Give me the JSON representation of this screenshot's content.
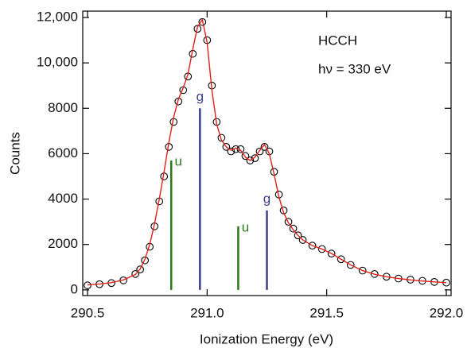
{
  "chart_data": {
    "type": "scatter",
    "x_label": "Ionization Energy (eV)",
    "y_label": "Counts",
    "annotations": [
      "HCCH",
      "hν = 330 eV"
    ],
    "xlim": [
      290.48,
      292.02
    ],
    "ylim": [
      -250,
      12280
    ],
    "xticks": [
      {
        "value": 290.5,
        "label": "290.5"
      },
      {
        "value": 291,
        "label": "291.0"
      },
      {
        "value": 291.5,
        "label": "291.5"
      },
      {
        "value": 292,
        "label": "292.0"
      }
    ],
    "yticks": [
      0,
      2000,
      4000,
      6000,
      8000,
      {
        "value": 10000,
        "label": "10,000"
      },
      {
        "value": 12000,
        "label": "12,000"
      }
    ],
    "x": [
      290.5,
      290.55,
      290.6,
      290.65,
      290.7,
      290.72,
      290.74,
      290.76,
      290.78,
      290.8,
      290.82,
      290.84,
      290.86,
      290.88,
      290.9,
      290.92,
      290.94,
      290.96,
      290.98,
      291.0,
      291.02,
      291.04,
      291.06,
      291.08,
      291.1,
      291.12,
      291.14,
      291.16,
      291.18,
      291.2,
      291.22,
      291.24,
      291.26,
      291.28,
      291.3,
      291.32,
      291.34,
      291.36,
      291.38,
      291.4,
      291.44,
      291.48,
      291.52,
      291.56,
      291.6,
      291.65,
      291.7,
      291.75,
      291.8,
      291.85,
      291.9,
      291.95,
      292.0
    ],
    "series": [
      {
        "name": "data",
        "color": "#000000",
        "values": [
          200,
          250,
          300,
          420,
          700,
          900,
          1300,
          1900,
          2800,
          3900,
          5000,
          6300,
          7400,
          8300,
          8800,
          9400,
          10400,
          11500,
          11800,
          11000,
          9000,
          7400,
          6700,
          6300,
          6100,
          6200,
          6200,
          5900,
          5700,
          5800,
          6100,
          6300,
          6100,
          5200,
          4200,
          3500,
          3000,
          2700,
          2400,
          2200,
          1950,
          1800,
          1600,
          1350,
          1100,
          850,
          700,
          580,
          500,
          450,
          400,
          350,
          320
        ]
      },
      {
        "name": "fit",
        "color": "#e0201b",
        "values": [
          220,
          260,
          320,
          440,
          680,
          920,
          1350,
          2000,
          2900,
          4000,
          5200,
          6500,
          7600,
          8400,
          8900,
          9500,
          10600,
          11600,
          11900,
          10900,
          8800,
          7300,
          6600,
          6300,
          6150,
          6250,
          6150,
          5850,
          5700,
          5850,
          6150,
          6400,
          6000,
          5100,
          4100,
          3400,
          2950,
          2650,
          2400,
          2200,
          1950,
          1800,
          1600,
          1350,
          1100,
          850,
          690,
          580,
          500,
          440,
          390,
          350,
          320
        ]
      }
    ],
    "sticks": [
      {
        "x": 290.85,
        "value": 5700,
        "label": "u",
        "color": "#2a7a1c"
      },
      {
        "x": 290.97,
        "value": 8000,
        "label": "g",
        "color": "#3b3f8e"
      },
      {
        "x": 291.13,
        "value": 2800,
        "label": "u",
        "color": "#2a7a1c"
      },
      {
        "x": 291.25,
        "value": 3500,
        "label": "g",
        "color": "#3b3f8e"
      }
    ]
  }
}
